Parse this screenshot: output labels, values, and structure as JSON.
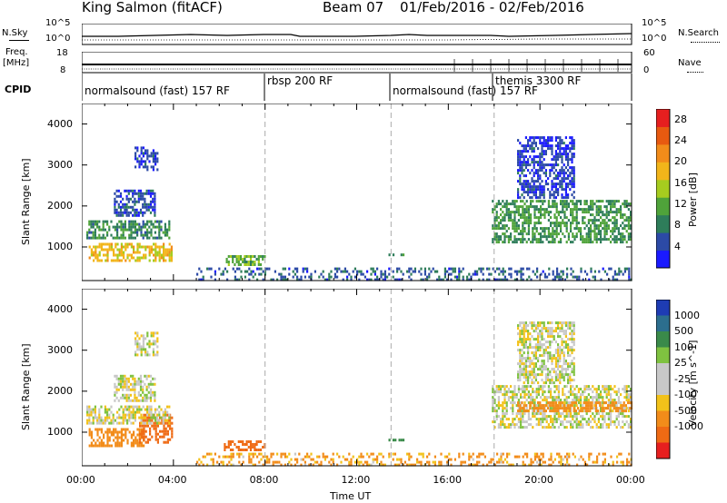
{
  "header": {
    "station": "King Salmon (fitACF)",
    "beam": "Beam 07",
    "date_range": "01/Feb/2016 - 02/Feb/2016"
  },
  "strips": {
    "nsky_label": "N.Sky",
    "nsearch_label": "N.Search",
    "noise_ticks_left": [
      "10^5",
      "10^0"
    ],
    "noise_ticks_right": [
      "10^5",
      "10^0"
    ],
    "freq_label_1": "Freq.",
    "freq_label_2": "[MHz]",
    "freq_ticks_left": [
      "18",
      "8"
    ],
    "nave_ticks_right": [
      "60",
      "0"
    ],
    "nave_label": "Nave",
    "cpid_label": "CPID",
    "cpid_segments": [
      {
        "label": "normalsound (fast) 157 RF",
        "start": 0.0
      },
      {
        "label": "rbsp 200 RF",
        "start": 8.0
      },
      {
        "label": "normalsound (fast) 157 RF",
        "start": 13.5
      },
      {
        "label": "themis 3300 RF",
        "start": 18.0
      }
    ]
  },
  "xaxis": {
    "label": "Time UT",
    "ticks": [
      "00:00",
      "04:00",
      "08:00",
      "12:00",
      "16:00",
      "20:00",
      "00:00"
    ]
  },
  "colors": {
    "power_scale": [
      "#1a1aff",
      "#2c4aa6",
      "#2e7d5a",
      "#4fa33a",
      "#a6cc1f",
      "#f2b51a",
      "#f28c1a",
      "#e85a10",
      "#e61f1f"
    ],
    "velocity_scale": [
      "#1e3cb4",
      "#2c6e8e",
      "#3a8a4a",
      "#7fc240",
      "#c8c8c8",
      "#c8c8c8",
      "#f2c21a",
      "#f28c1a",
      "#ef6a14",
      "#e61f1f"
    ]
  },
  "chart_data": [
    {
      "type": "heatmap",
      "title": "",
      "xlabel": "Time UT",
      "ylabel": "Slant Range [km]",
      "xlim": [
        0,
        24
      ],
      "ylim": [
        180,
        4500
      ],
      "ytick_labels": [
        "1000",
        "2000",
        "3000",
        "4000"
      ],
      "colorbar_label": "Power [dB]",
      "colorbar_ticks": [
        "4",
        "8",
        "12",
        "16",
        "20",
        "24",
        "28"
      ],
      "colorbar_range": [
        0,
        30
      ],
      "regions": [
        {
          "t0": 0.3,
          "t1": 3.9,
          "r0": 700,
          "r1": 1100,
          "value": 18
        },
        {
          "t0": 0.2,
          "t1": 3.8,
          "r0": 1200,
          "r1": 1650,
          "value": 9
        },
        {
          "t0": 1.4,
          "t1": 3.2,
          "r0": 1750,
          "r1": 2400,
          "value": 5
        },
        {
          "t0": 2.3,
          "t1": 3.3,
          "r0": 2900,
          "r1": 3450,
          "value": 4
        },
        {
          "t0": 6.2,
          "t1": 8.0,
          "r0": 600,
          "r1": 800,
          "value": 12
        },
        {
          "t0": 13.3,
          "t1": 14.0,
          "r0": 780,
          "r1": 840,
          "value": 8
        },
        {
          "t0": 17.9,
          "t1": 24.0,
          "r0": 1150,
          "r1": 2150,
          "value": 10
        },
        {
          "t0": 19.0,
          "t1": 21.5,
          "r0": 2200,
          "r1": 3700,
          "value": 4
        },
        {
          "t0": 5.0,
          "t1": 24.0,
          "r0": 200,
          "r1": 500,
          "value": 6
        }
      ]
    },
    {
      "type": "heatmap",
      "title": "",
      "xlabel": "Time UT",
      "ylabel": "Slant Range [km]",
      "xlim": [
        0,
        24
      ],
      "ylim": [
        180,
        4500
      ],
      "ytick_labels": [
        "1000",
        "2000",
        "3000",
        "4000"
      ],
      "colorbar_label": "Velocity [m s^-1]",
      "colorbar_ticks": [
        "1000",
        "500",
        "100",
        "25",
        "-25",
        "-100",
        "-500",
        "-1000"
      ],
      "regions": [
        {
          "t0": 0.3,
          "t1": 2.7,
          "r0": 700,
          "r1": 1100,
          "value": -200
        },
        {
          "t0": 2.5,
          "t1": 3.9,
          "r0": 750,
          "r1": 1450,
          "value": -500
        },
        {
          "t0": 0.2,
          "t1": 3.8,
          "r0": 1200,
          "r1": 1650,
          "value": 0
        },
        {
          "t0": 1.4,
          "t1": 3.2,
          "r0": 1750,
          "r1": 2400,
          "value": 0
        },
        {
          "t0": 2.3,
          "t1": 3.3,
          "r0": 2900,
          "r1": 3450,
          "value": 0
        },
        {
          "t0": 6.2,
          "t1": 8.0,
          "r0": 600,
          "r1": 800,
          "value": -400
        },
        {
          "t0": 13.3,
          "t1": 14.0,
          "r0": 780,
          "r1": 840,
          "value": 150
        },
        {
          "t0": 17.9,
          "t1": 24.0,
          "r0": 1150,
          "r1": 2150,
          "value": 0
        },
        {
          "t0": 19.0,
          "t1": 24.0,
          "r0": 1500,
          "r1": 1750,
          "value": -200
        },
        {
          "t0": 19.0,
          "t1": 21.5,
          "r0": 2200,
          "r1": 3700,
          "value": 0
        },
        {
          "t0": 5.0,
          "t1": 24.0,
          "r0": 200,
          "r1": 500,
          "value": -80
        }
      ]
    }
  ]
}
